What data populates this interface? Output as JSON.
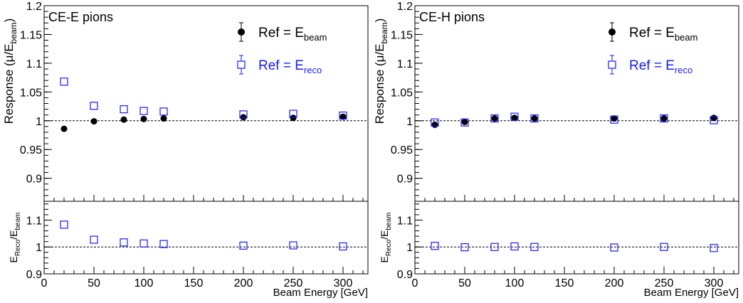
{
  "chart_data": [
    {
      "type": "scatter",
      "title": "CE-E pions",
      "xlabel": "Beam Energy [GeV]",
      "xlim": [
        0,
        325
      ],
      "xticks": [
        0,
        50,
        100,
        150,
        200,
        250,
        300
      ],
      "top": {
        "ylabel": {
          "main": "Response (μ/E",
          "sub": "beam",
          "tail": ")"
        },
        "ylim": [
          0.86,
          1.2
        ],
        "yticks": [
          0.9,
          0.95,
          1,
          1.05,
          1.1,
          1.15,
          1.2
        ],
        "ytick_labels": [
          "0.9",
          "0.95",
          "1",
          "1.05",
          "1.1",
          "1.15",
          "1.2"
        ],
        "reference_line": 1,
        "legend": [
          {
            "marker": "filled-circle",
            "text": "Ref = E",
            "sub": "beam",
            "color": "#000000"
          },
          {
            "marker": "open-square",
            "text": "Ref = E",
            "sub": "reco",
            "color": "#1a1aff"
          }
        ],
        "series": [
          {
            "name": "Ref = E_beam",
            "marker": "filled-circle",
            "color": "#000000",
            "x": [
              20,
              50,
              80,
              100,
              120,
              200,
              250,
              300
            ],
            "y": [
              0.986,
              0.999,
              1.002,
              1.003,
              1.004,
              1.006,
              1.005,
              1.007
            ]
          },
          {
            "name": "Ref = E_reco",
            "marker": "open-square",
            "color": "#1a1aff",
            "x": [
              20,
              50,
              80,
              100,
              120,
              200,
              250,
              300
            ],
            "y": [
              1.068,
              1.026,
              1.02,
              1.017,
              1.016,
              1.011,
              1.012,
              1.009
            ]
          }
        ]
      },
      "bottom": {
        "ylabel": {
          "main1": "E",
          "sub1": "Reco",
          "main2": "/E",
          "sub2": "beam"
        },
        "ylim": [
          0.9,
          1.17
        ],
        "yticks": [
          0.9,
          1,
          1.1
        ],
        "ytick_labels": [
          "0.9",
          "1",
          "1.1"
        ],
        "reference_line": 1,
        "series": [
          {
            "marker": "open-square",
            "color": "#1a1aff",
            "x": [
              20,
              50,
              80,
              100,
              120,
              200,
              250,
              300
            ],
            "y": [
              1.083,
              1.027,
              1.017,
              1.013,
              1.011,
              1.005,
              1.006,
              1.002
            ]
          }
        ]
      }
    },
    {
      "type": "scatter",
      "title": "CE-H pions",
      "xlabel": "Beam Energy [GeV]",
      "xlim": [
        0,
        325
      ],
      "xticks": [
        0,
        50,
        100,
        150,
        200,
        250,
        300
      ],
      "top": {
        "ylabel": {
          "main": "Response (μ/E",
          "sub": "beam",
          "tail": ")"
        },
        "ylim": [
          0.86,
          1.2
        ],
        "yticks": [
          0.9,
          0.95,
          1,
          1.05,
          1.1,
          1.15,
          1.2
        ],
        "ytick_labels": [
          "0.9",
          "0.95",
          "1",
          "1.05",
          "1.1",
          "1.15",
          "1.2"
        ],
        "reference_line": 1,
        "legend": [
          {
            "marker": "filled-circle",
            "text": "Ref = E",
            "sub": "beam",
            "color": "#000000"
          },
          {
            "marker": "open-square",
            "text": "Ref = E",
            "sub": "reco",
            "color": "#1a1aff"
          }
        ],
        "series": [
          {
            "name": "Ref = E_beam",
            "marker": "filled-circle",
            "color": "#000000",
            "x": [
              20,
              50,
              80,
              100,
              120,
              200,
              250,
              300
            ],
            "y": [
              0.993,
              0.998,
              1.004,
              1.005,
              1.004,
              1.004,
              1.004,
              1.005
            ]
          },
          {
            "name": "Ref = E_reco",
            "marker": "open-square",
            "color": "#1a1aff",
            "x": [
              20,
              50,
              80,
              100,
              120,
              200,
              250,
              300
            ],
            "y": [
              0.997,
              0.997,
              1.004,
              1.007,
              1.004,
              1.002,
              1.004,
              1.001
            ]
          }
        ]
      },
      "bottom": {
        "ylabel": {
          "main1": "E",
          "sub1": "Reco",
          "main2": "/E",
          "sub2": "beam"
        },
        "ylim": [
          0.9,
          1.17
        ],
        "yticks": [
          0.9,
          1,
          1.1
        ],
        "ytick_labels": [
          "0.9",
          "1",
          "1.1"
        ],
        "reference_line": 1,
        "series": [
          {
            "marker": "open-square",
            "color": "#1a1aff",
            "x": [
              20,
              50,
              80,
              100,
              120,
              200,
              250,
              300
            ],
            "y": [
              1.004,
              0.999,
              1.0,
              1.002,
              1.0,
              0.998,
              1.0,
              0.996
            ]
          }
        ]
      }
    }
  ]
}
